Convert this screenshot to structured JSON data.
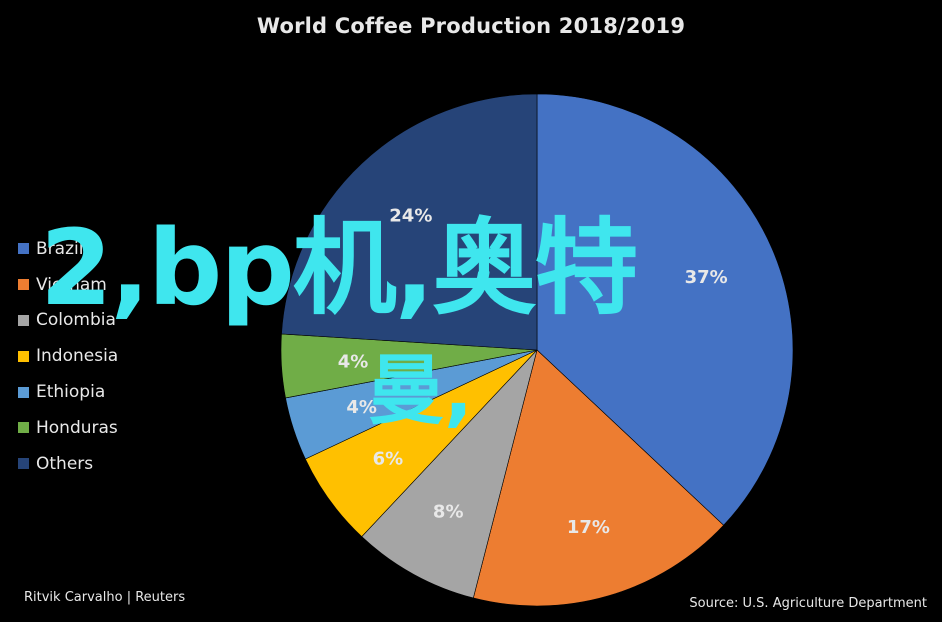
{
  "chart_data": {
    "type": "pie",
    "title": "World Coffee Production 2018/2019",
    "categories": [
      "Brazil",
      "Vietnam",
      "Colombia",
      "Indonesia",
      "Ethiopia",
      "Honduras",
      "Others"
    ],
    "values": [
      37,
      17,
      8,
      6,
      4,
      4,
      24
    ],
    "labels": [
      "37%",
      "17%",
      "8%",
      "6%",
      "4%",
      "4%",
      "24%"
    ],
    "colors": [
      "#4472c4",
      "#ed7d31",
      "#a5a5a5",
      "#ffc000",
      "#5b9bd5",
      "#70ad47",
      "#264478"
    ],
    "legend_position": "left",
    "legend_labels": [
      "Brazil",
      "Vietnam",
      "Colombia",
      "Indonesia",
      "Ethiopia",
      "Honduras",
      "Others"
    ]
  },
  "overlay_text": {
    "line1": "2,bp机,奥特",
    "line2": "曼,"
  },
  "footer": {
    "credit": "Ritvik Carvalho | Reuters",
    "source": "Source: U.S. Agriculture Department"
  }
}
